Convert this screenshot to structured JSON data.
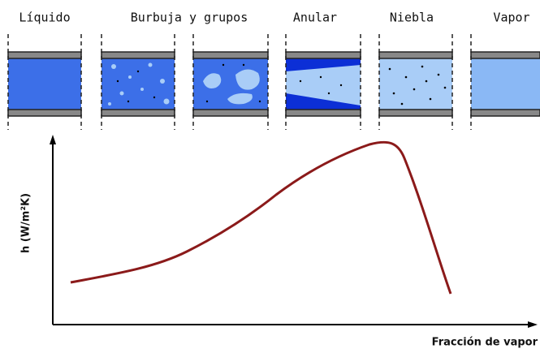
{
  "regimes": [
    {
      "label": "Líquido"
    },
    {
      "label": "Burbuja y grupos"
    },
    {
      "label": "Anular"
    },
    {
      "label": "Niebla"
    },
    {
      "label": "Vapor"
    }
  ],
  "axes": {
    "y_label": "h (W/m²K)",
    "x_label": "Fracción de vapor"
  }
}
